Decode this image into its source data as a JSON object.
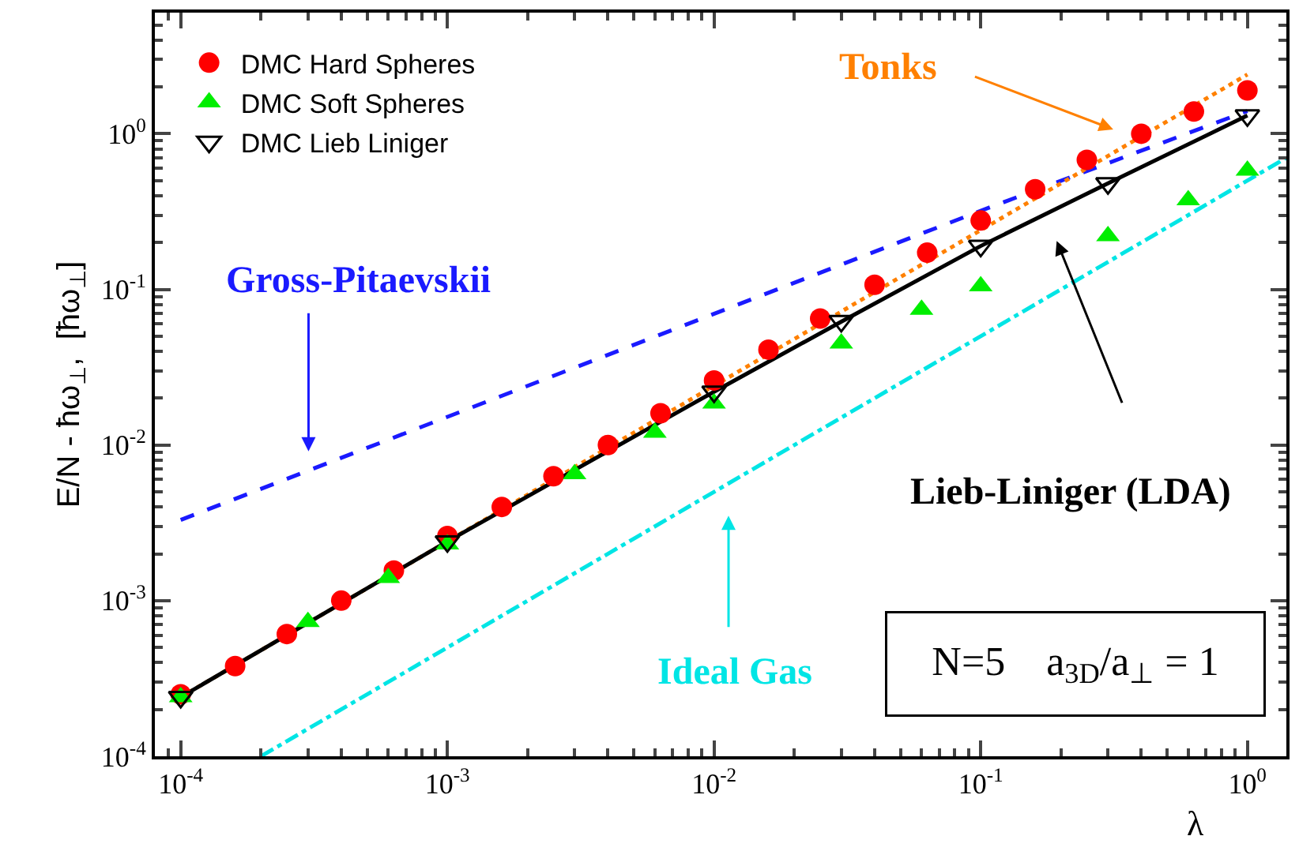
{
  "chart_data": {
    "type": "scatter",
    "xlabel": "λ",
    "ylabel": "E/N - ħω$_{⊥}$,  [ħω$_{⊥}$]",
    "log": "xy",
    "legend": "top left",
    "xlim": [
      8e-05,
      1.4
    ],
    "ylim": [
      0.0001,
      6
    ],
    "xticks": [
      {
        "value": 0.0001,
        "label": "10$^{-4}$"
      },
      {
        "value": 0.001,
        "label": "10$^{-3}$"
      },
      {
        "value": 0.01,
        "label": "10$^{-2}$"
      },
      {
        "value": 0.1,
        "label": "10$^{-1}$"
      },
      {
        "value": 1,
        "label": "10$^{0}$"
      }
    ],
    "yticks": [
      {
        "value": 0.0001,
        "label": "10$^{-4}$"
      },
      {
        "value": 0.001,
        "label": "10$^{-3}$"
      },
      {
        "value": 0.01,
        "label": "10$^{-2}$"
      },
      {
        "value": 0.1,
        "label": "10$^{-1}$"
      },
      {
        "value": 1,
        "label": "10$^{0}$"
      }
    ],
    "series": [
      {
        "type": "line",
        "color": "#1a1aff",
        "line_style": "dashed",
        "x": [
          0.0001,
          0.1,
          1
        ],
        "values": [
          0.0033,
          0.32,
          1.4
        ]
      },
      {
        "type": "line",
        "color": "#ff8000",
        "line_style": "dotted",
        "x": [
          0.0001,
          0.01,
          1
        ],
        "values": [
          0.00024,
          0.024,
          2.4
        ]
      },
      {
        "type": "line",
        "color": "#00e5e5",
        "line_style": "dashdot",
        "x": [
          0.0002,
          0.01,
          1.4
        ],
        "values": [
          0.0001,
          0.005,
          0.7
        ]
      },
      {
        "type": "line",
        "color": "#000000",
        "line_style": "solid",
        "x": [
          0.0001,
          0.001,
          0.01,
          0.03,
          0.1,
          0.3,
          1
        ],
        "values": [
          0.00024,
          0.0024,
          0.022,
          0.062,
          0.19,
          0.48,
          1.31
        ]
      },
      {
        "name": "DMC Hard Spheres",
        "color": "#ff0000",
        "marker": "circle",
        "x": [
          0.0001,
          0.00016,
          0.00025,
          0.0004,
          0.00063,
          0.001,
          0.0016,
          0.0025,
          0.004,
          0.0063,
          0.01,
          0.016,
          0.025,
          0.04,
          0.063,
          0.1,
          0.16,
          0.25,
          0.4,
          0.63,
          1
        ],
        "values": [
          0.00025,
          0.00038,
          0.00061,
          0.001,
          0.00156,
          0.0026,
          0.004,
          0.0063,
          0.01,
          0.016,
          0.026,
          0.041,
          0.065,
          0.107,
          0.172,
          0.277,
          0.44,
          0.68,
          1.0,
          1.39,
          1.9
        ]
      },
      {
        "name": "DMC Soft Spheres",
        "color": "#00ee00",
        "marker": "triangle",
        "x": [
          0.0001,
          0.0003,
          0.0006,
          0.001,
          0.003,
          0.006,
          0.01,
          0.03,
          0.06,
          0.1,
          0.3,
          0.6,
          1
        ],
        "values": [
          0.00024,
          0.00073,
          0.0014,
          0.0023,
          0.0065,
          0.012,
          0.0185,
          0.045,
          0.074,
          0.105,
          0.22,
          0.375,
          0.58
        ]
      },
      {
        "name": "DMC Lieb Liniger",
        "color": "#000000",
        "marker": "triangle-down",
        "x": [
          0.0001,
          0.001,
          0.01,
          0.03,
          0.1,
          0.3,
          1
        ],
        "values": [
          0.00024,
          0.0024,
          0.022,
          0.0625,
          0.19,
          0.48,
          1.31
        ]
      }
    ],
    "annotations": [
      "Gross-Pitaevskii",
      "Tonks",
      "Lieb-Liniger (LDA)",
      "Ideal Gas",
      "N=5    a$_{3D}$/a$_{⊥}$ = 1"
    ]
  }
}
